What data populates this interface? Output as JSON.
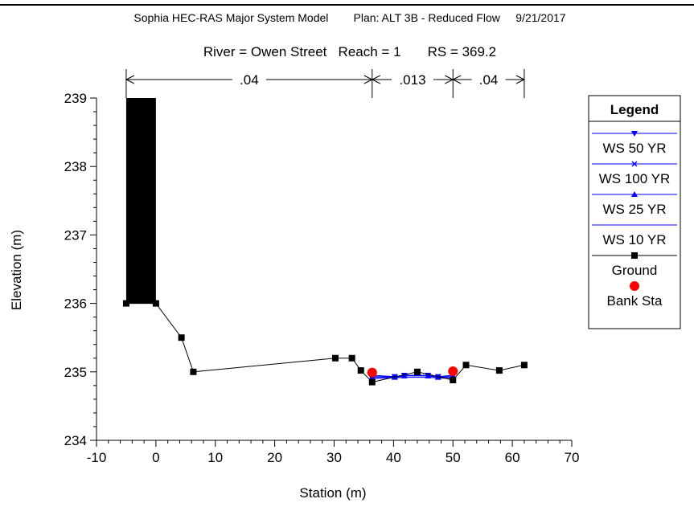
{
  "header": {
    "line1": "Sophia HEC-RAS Major System Model        Plan: ALT 3B - Reduced Flow     9/21/2017",
    "line2": "River = Owen Street   Reach = 1       RS = 369.2"
  },
  "chart_data": {
    "type": "line",
    "xlabel": "Station (m)",
    "ylabel": "Elevation (m)",
    "xlim": [
      -10,
      70
    ],
    "ylim": [
      234,
      239
    ],
    "xticks": [
      -10,
      0,
      10,
      20,
      30,
      40,
      50,
      60,
      70
    ],
    "yticks": [
      234,
      235,
      236,
      237,
      238,
      239
    ],
    "grid": false,
    "legend_position": "right",
    "legend_title": "Legend",
    "mannings_n": [
      {
        "label": ".04",
        "x_start": -5,
        "x_end": 36.4
      },
      {
        "label": ".013",
        "x_start": 36.4,
        "x_end": 50.0
      },
      {
        "label": ".04",
        "x_start": 50.0,
        "x_end": 62.0
      }
    ],
    "obstruction": {
      "x_start": -5,
      "x_end": 0,
      "y_bottom": 236.0,
      "y_top": 239.0
    },
    "series": [
      {
        "name": "WS 50 YR",
        "color": "#0000ff",
        "marker": "triangle-down",
        "x": [
          36.4,
          40.2,
          41.8,
          45.8,
          47.5,
          50.0
        ],
        "y": [
          234.93,
          234.93,
          234.95,
          234.95,
          234.93,
          234.93
        ]
      },
      {
        "name": "WS 100 YR",
        "color": "#0000ff",
        "marker": "x",
        "x": [
          36.4,
          40.2,
          41.8,
          45.8,
          47.5,
          50.0
        ],
        "y": [
          234.95,
          234.93,
          234.95,
          234.95,
          234.93,
          234.95
        ]
      },
      {
        "name": "WS 25 YR",
        "color": "#0000ff",
        "marker": "triangle-up",
        "x": [
          36.4,
          40.2,
          41.8,
          45.8,
          47.5,
          50.0
        ],
        "y": [
          234.92,
          234.92,
          234.94,
          234.94,
          234.92,
          234.92
        ]
      },
      {
        "name": "WS 10 YR",
        "color": "#0000ff",
        "marker": "none",
        "x": [
          36.4,
          41.8,
          45.8,
          50.0
        ],
        "y": [
          234.9,
          234.92,
          234.92,
          234.9
        ]
      },
      {
        "name": "Ground",
        "color": "#000000",
        "marker": "square",
        "x": [
          -5.0,
          0.0,
          4.3,
          6.3,
          30.2,
          33.0,
          34.5,
          36.4,
          44.0,
          50.0,
          52.2,
          57.8,
          62.0
        ],
        "y": [
          236.0,
          236.0,
          235.5,
          235.0,
          235.2,
          235.2,
          235.02,
          234.85,
          235.0,
          234.88,
          235.1,
          235.02,
          235.1
        ]
      },
      {
        "name": "Bank Sta",
        "color": "#ff0000",
        "marker": "circle",
        "x": [
          36.4,
          50.0
        ],
        "y": [
          234.99,
          235.01
        ]
      }
    ]
  }
}
